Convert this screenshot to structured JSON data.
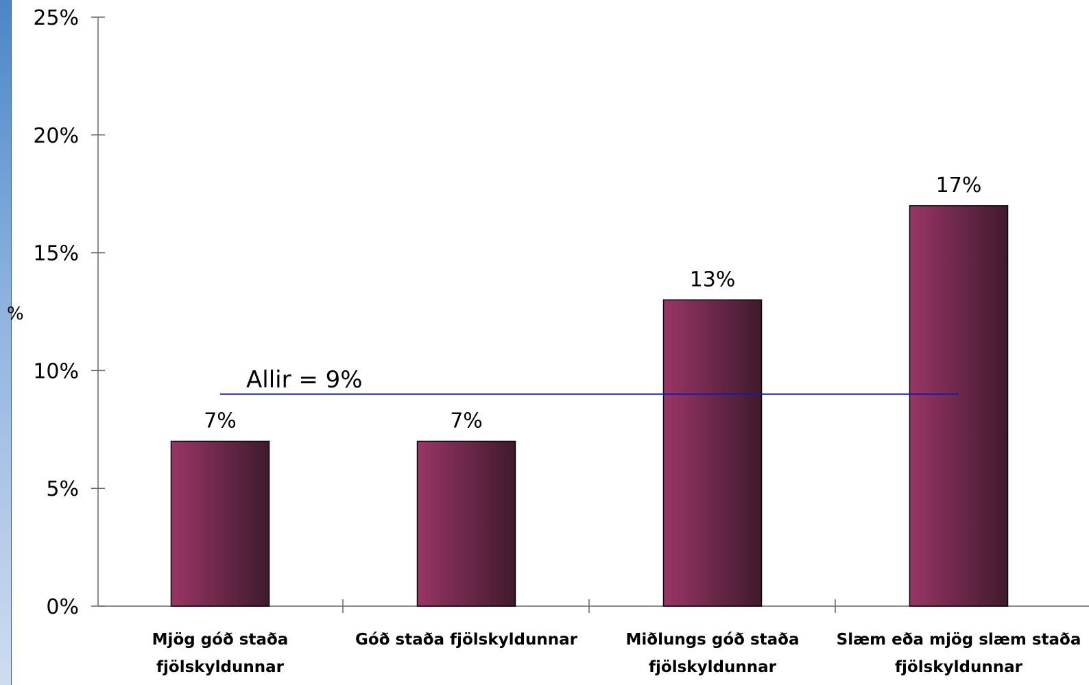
{
  "colors": {
    "bar_light": "#9a3566",
    "bar_dark": "#3f1a2c",
    "bar_stroke": "#000000",
    "reference_line": "#1a1aa0",
    "axis": "#666666"
  },
  "chart_data": {
    "type": "bar",
    "categories": [
      [
        "Mjög góð staða",
        "fjölskyldunnar"
      ],
      [
        "Góð staða fjölskyldunnar"
      ],
      [
        "Miðlungs góð staða",
        "fjölskyldunnar"
      ],
      [
        "Slæm eða mjög slæm staða",
        "fjölskyldunnar"
      ]
    ],
    "values": [
      7,
      7,
      13,
      17
    ],
    "data_labels": [
      "7%",
      "7%",
      "13%",
      "17%"
    ],
    "title": "",
    "xlabel": "",
    "ylabel": "%",
    "ylim": [
      0,
      25
    ],
    "yticks": [
      0,
      5,
      10,
      15,
      20,
      25
    ],
    "ytick_labels": [
      "0%",
      "5%",
      "10%",
      "15%",
      "20%",
      "25%"
    ],
    "reference_line": {
      "value": 9,
      "label": "Allir =  9%"
    },
    "grid": false,
    "legend": "none"
  }
}
